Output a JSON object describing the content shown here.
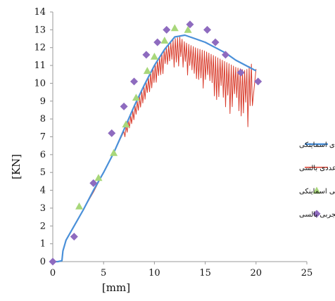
{
  "chart_data": {
    "type": "line",
    "title": "",
    "xlabel": "[mm]",
    "ylabel": "[KN]",
    "xlim": [
      0,
      25
    ],
    "ylim": [
      0,
      14
    ],
    "xticks": [
      0,
      5,
      10,
      15,
      20,
      25
    ],
    "yticks": [
      0,
      1,
      2,
      3,
      4,
      5,
      6,
      7,
      8,
      9,
      10,
      11,
      12,
      13,
      14
    ],
    "grid": false,
    "legend_position": "right",
    "series": [
      {
        "name": "عددی اسماینکی",
        "kind": "line",
        "color": "#4a90d9",
        "x": [
          0,
          0.5,
          0.9,
          1.0,
          1.3,
          2.0,
          3.0,
          4.0,
          5.0,
          6.0,
          7.0,
          8.0,
          9.0,
          10.0,
          11.0,
          12.0,
          13.0,
          14.0,
          15.0,
          16.0,
          17.0,
          18.0,
          19.0,
          20.0
        ],
        "y": [
          0,
          0,
          0.05,
          0.6,
          1.2,
          1.9,
          2.9,
          4.0,
          5.0,
          6.1,
          7.4,
          8.7,
          9.9,
          11.0,
          11.9,
          12.6,
          12.7,
          12.5,
          12.3,
          12.0,
          11.7,
          11.3,
          11.0,
          10.7
        ]
      },
      {
        "name": "عددی بالسی",
        "kind": "line",
        "color": "#d93c2c",
        "x": [
          0,
          0.5,
          0.9,
          1.0,
          1.3,
          2.0,
          3.0,
          4.0,
          5.0,
          6.0,
          7.0,
          8.0,
          9.0,
          10.0,
          11.0,
          12.0,
          12.5,
          13.0,
          14.0,
          15.0,
          16.0,
          17.0,
          18.0,
          19.0,
          19.5,
          20.0
        ],
        "y": [
          0,
          0,
          0.05,
          0.6,
          1.2,
          1.9,
          2.9,
          3.9,
          5.0,
          6.1,
          7.3,
          8.6,
          9.8,
          11.0,
          11.9,
          12.5,
          12.6,
          12.3,
          12.0,
          11.8,
          11.5,
          11.2,
          10.9,
          10.7,
          11.1,
          10.8
        ],
        "oscillation": {
          "x_start": 7.0,
          "x_end": 19.6,
          "step": 0.22,
          "max_drop": 3.2
        }
      },
      {
        "name": "تجربی اسماینکی",
        "kind": "scatter",
        "marker": "triangle",
        "color": "#a8d77a",
        "x": [
          2.6,
          4.5,
          6.0,
          7.2,
          8.2,
          9.3,
          10.0,
          11.0,
          12.0,
          13.3
        ],
        "y": [
          3.1,
          4.7,
          6.1,
          7.7,
          9.2,
          10.7,
          11.5,
          12.4,
          13.1,
          13.0
        ]
      },
      {
        "name": "تجربی بالسی",
        "kind": "scatter",
        "marker": "diamond",
        "color": "#8e6bbf",
        "x": [
          0.0,
          2.1,
          4.0,
          5.8,
          7.0,
          8.0,
          9.2,
          10.3,
          11.2,
          13.5,
          15.2,
          16.0,
          17.0,
          18.5,
          20.2
        ],
        "y": [
          0.0,
          1.4,
          4.4,
          7.2,
          8.7,
          10.1,
          11.6,
          12.3,
          13.0,
          13.3,
          13.0,
          12.3,
          11.6,
          10.6,
          10.1
        ]
      }
    ]
  }
}
